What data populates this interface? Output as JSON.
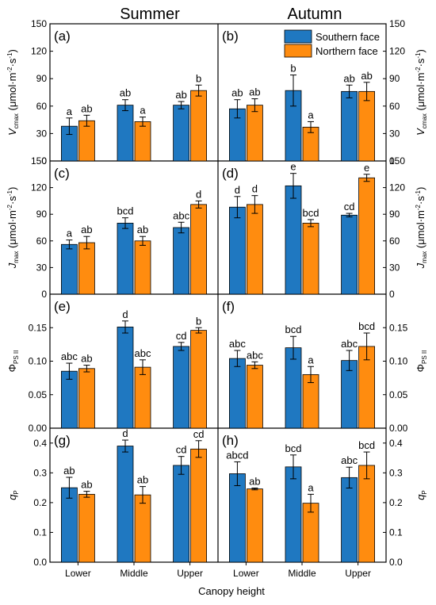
{
  "figure": {
    "column_titles": [
      "Summer",
      "Autumn"
    ],
    "xlabel": "Canopy height",
    "legend": {
      "southern": "Southern face",
      "northern": "Northern face"
    },
    "colors": {
      "southern": "#1f78c1",
      "northern": "#ff8c0f"
    }
  },
  "chart_data": [
    {
      "type": "bar",
      "panel": "(a)",
      "season": "Summer",
      "categories": [
        "Lower",
        "Middle",
        "Upper"
      ],
      "ylabel": {
        "sym": "V",
        "sub": "cmax",
        "unit": " (μmol·m",
        "exp1": "-2",
        "mid": "·s",
        "exp2": "-1",
        "close": ")"
      },
      "ylim": [
        0,
        150
      ],
      "yticks": [
        "0",
        "30",
        "60",
        "90",
        "120",
        "150"
      ],
      "series": [
        {
          "name": "Southern face",
          "values": [
            38,
            61,
            61
          ],
          "errors": [
            9,
            6,
            4
          ],
          "letters": [
            "a",
            "ab",
            "ab"
          ]
        },
        {
          "name": "Northern face",
          "values": [
            44,
            43,
            77
          ],
          "errors": [
            6,
            5,
            6
          ],
          "letters": [
            "ab",
            "a",
            "b"
          ]
        }
      ]
    },
    {
      "type": "bar",
      "panel": "(b)",
      "season": "Autumn",
      "categories": [
        "Lower",
        "Middle",
        "Upper"
      ],
      "ylabel": {
        "sym": "V",
        "sub": "cmax",
        "unit": " (μmol·m",
        "exp1": "-2",
        "mid": "·s",
        "exp2": "-1",
        "close": ")"
      },
      "ylim": [
        0,
        150
      ],
      "yticks": [
        "0",
        "30",
        "60",
        "90",
        "120",
        "150"
      ],
      "series": [
        {
          "name": "Southern face",
          "values": [
            57,
            77,
            76
          ],
          "errors": [
            10,
            17,
            7
          ],
          "letters": [
            "ab",
            "b",
            "ab"
          ]
        },
        {
          "name": "Northern face",
          "values": [
            61,
            37,
            76
          ],
          "errors": [
            7,
            6,
            10
          ],
          "letters": [
            "ab",
            "a",
            "ab"
          ]
        }
      ]
    },
    {
      "type": "bar",
      "panel": "(c)",
      "season": "Summer",
      "categories": [
        "Lower",
        "Middle",
        "Upper"
      ],
      "ylabel": {
        "sym": "J",
        "sub": "max",
        "unit": " (μmol·m",
        "exp1": "-2",
        "mid": "·s",
        "exp2": "-1",
        "close": ")"
      },
      "ylim": [
        0,
        150
      ],
      "yticks": [
        "0",
        "30",
        "60",
        "90",
        "120",
        "150"
      ],
      "series": [
        {
          "name": "Southern face",
          "values": [
            56,
            80,
            75
          ],
          "errors": [
            5,
            6,
            6
          ],
          "letters": [
            "a",
            "bcd",
            "abc"
          ]
        },
        {
          "name": "Northern face",
          "values": [
            58,
            60,
            101
          ],
          "errors": [
            7,
            5,
            4
          ],
          "letters": [
            "ab",
            "ab",
            "d"
          ]
        }
      ]
    },
    {
      "type": "bar",
      "panel": "(d)",
      "season": "Autumn",
      "categories": [
        "Lower",
        "Middle",
        "Upper"
      ],
      "ylabel": {
        "sym": "J",
        "sub": "max",
        "unit": " (μmol·m",
        "exp1": "-2",
        "mid": "·s",
        "exp2": "-1",
        "close": ")"
      },
      "ylim": [
        0,
        150
      ],
      "yticks": [
        "0",
        "30",
        "60",
        "90",
        "120",
        "150"
      ],
      "series": [
        {
          "name": "Southern face",
          "values": [
            98,
            122,
            89
          ],
          "errors": [
            12,
            14,
            2
          ],
          "letters": [
            "d",
            "e",
            "cd"
          ]
        },
        {
          "name": "Northern face",
          "values": [
            101,
            80,
            131
          ],
          "errors": [
            10,
            4,
            4
          ],
          "letters": [
            "d",
            "bcd",
            "e"
          ]
        }
      ]
    },
    {
      "type": "bar",
      "panel": "(e)",
      "season": "Summer",
      "categories": [
        "Lower",
        "Middle",
        "Upper"
      ],
      "ylabel": {
        "sym": "Φ",
        "sub": "PS II",
        "unit": "",
        "exp1": "",
        "mid": "",
        "exp2": "",
        "close": ""
      },
      "ylim": [
        0,
        0.2
      ],
      "yticks": [
        "0.00",
        "0.05",
        "0.10",
        "0.15"
      ],
      "series": [
        {
          "name": "Southern face",
          "values": [
            0.085,
            0.151,
            0.122
          ],
          "errors": [
            0.012,
            0.009,
            0.006
          ],
          "letters": [
            "abc",
            "d",
            "cd"
          ]
        },
        {
          "name": "Northern face",
          "values": [
            0.089,
            0.091,
            0.146
          ],
          "errors": [
            0.005,
            0.011,
            0.004
          ],
          "letters": [
            "ab",
            "abc",
            "b"
          ]
        }
      ]
    },
    {
      "type": "bar",
      "panel": "(f)",
      "season": "Autumn",
      "categories": [
        "Lower",
        "Middle",
        "Upper"
      ],
      "ylabel": {
        "sym": "Φ",
        "sub": "PS II",
        "unit": "",
        "exp1": "",
        "mid": "",
        "exp2": "",
        "close": ""
      },
      "ylim": [
        0,
        0.2
      ],
      "yticks": [
        "0.00",
        "0.05",
        "0.10",
        "0.15"
      ],
      "series": [
        {
          "name": "Southern face",
          "values": [
            0.104,
            0.12,
            0.101
          ],
          "errors": [
            0.012,
            0.017,
            0.015
          ],
          "letters": [
            "abc",
            "bcd",
            "abc"
          ]
        },
        {
          "name": "Northern face",
          "values": [
            0.094,
            0.08,
            0.122
          ],
          "errors": [
            0.005,
            0.012,
            0.02
          ],
          "letters": [
            "abc",
            "a",
            "bcd"
          ]
        }
      ]
    },
    {
      "type": "bar",
      "panel": "(g)",
      "season": "Summer",
      "categories": [
        "Lower",
        "Middle",
        "Upper"
      ],
      "ylabel": {
        "sym": "q",
        "sub": "P",
        "unit": "",
        "exp1": "",
        "mid": "",
        "exp2": "",
        "close": ""
      },
      "ylim": [
        0,
        0.45
      ],
      "yticks": [
        "0.0",
        "0.1",
        "0.2",
        "0.3",
        "0.4"
      ],
      "series": [
        {
          "name": "Southern face",
          "values": [
            0.25,
            0.39,
            0.325
          ],
          "errors": [
            0.035,
            0.02,
            0.03
          ],
          "letters": [
            "ab",
            "d",
            "cd"
          ]
        },
        {
          "name": "Northern face",
          "values": [
            0.228,
            0.226,
            0.38
          ],
          "errors": [
            0.01,
            0.028,
            0.028
          ],
          "letters": [
            "ab",
            "ab",
            "cd"
          ]
        }
      ]
    },
    {
      "type": "bar",
      "panel": "(h)",
      "season": "Autumn",
      "categories": [
        "Lower",
        "Middle",
        "Upper"
      ],
      "ylabel": {
        "sym": "q",
        "sub": "P",
        "unit": "",
        "exp1": "",
        "mid": "",
        "exp2": "",
        "close": ""
      },
      "ylim": [
        0,
        0.45
      ],
      "yticks": [
        "0.0",
        "0.1",
        "0.2",
        "0.3",
        "0.4"
      ],
      "series": [
        {
          "name": "Southern face",
          "values": [
            0.297,
            0.32,
            0.284
          ],
          "errors": [
            0.04,
            0.04,
            0.035
          ],
          "letters": [
            "abcd",
            "bcd",
            "abc"
          ]
        },
        {
          "name": "Northern face",
          "values": [
            0.246,
            0.198,
            0.325
          ],
          "errors": [
            0.003,
            0.03,
            0.045
          ],
          "letters": [
            "ab",
            "a",
            "bcd"
          ]
        }
      ]
    }
  ]
}
